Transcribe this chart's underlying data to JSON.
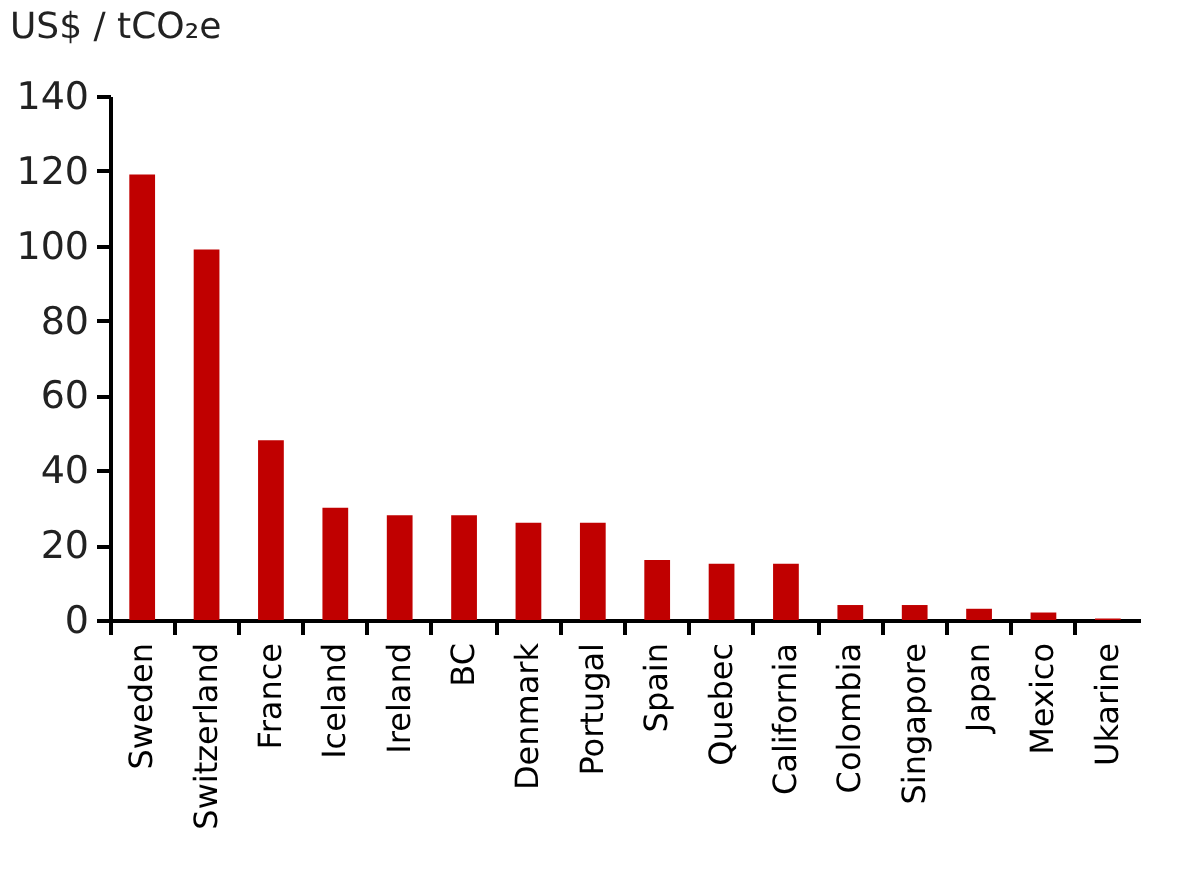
{
  "chart_data": {
    "type": "bar",
    "title": "US$ / tCO₂e",
    "categories": [
      "Sweden",
      "Switzerland",
      "France",
      "Iceland",
      "Ireland",
      "BC",
      "Denmark",
      "Portugal",
      "Spain",
      "Quebec",
      "California",
      "Colombia",
      "Singapore",
      "Japan",
      "Mexico",
      "Ukarine"
    ],
    "values": [
      119,
      99,
      48,
      30,
      28,
      28,
      26,
      26,
      16,
      15,
      15,
      4,
      4,
      3,
      2,
      0.4
    ],
    "color": "#c00000",
    "ylim": [
      0,
      140
    ],
    "yticks": [
      0,
      20,
      40,
      60,
      80,
      100,
      120,
      140
    ],
    "grid": false
  }
}
